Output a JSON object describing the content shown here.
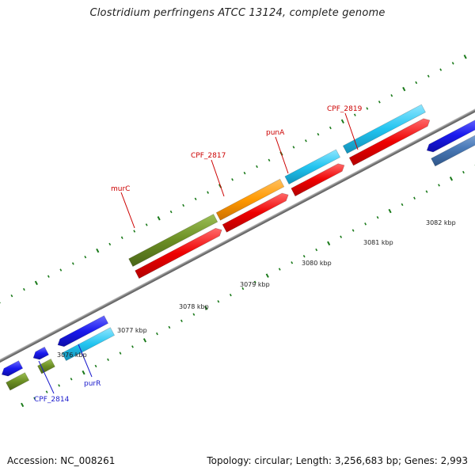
{
  "title": "Clostridium perfringens ATCC 13124, complete genome",
  "accession": "Accession: NC_008261",
  "topology": "Topology: circular; Length: 3,256,683 bp; Genes: 2,993",
  "colors": {
    "backbone": "#8c8c8c",
    "tick": "#1a7a1a",
    "cds_forward_red": "#ff1a1a",
    "gene_cyan": "#33ccf5",
    "gene_olive": "#6b8e23",
    "gene_orange": "#ff9900",
    "gene_blue": "#1a1aee",
    "gene_steel": "#4a7ab8",
    "label_red": "#cc0000",
    "label_blue": "#1a1acc"
  },
  "kbp_labels": [
    "3076 kbp",
    "3077 kbp",
    "3078 kbp",
    "3079 kbp",
    "3080 kbp",
    "3081 kbp",
    "3082 kbp"
  ],
  "gene_labels": [
    "murC",
    "CPF_2817",
    "punA",
    "CPF_2819",
    "CPF_2814",
    "purR"
  ]
}
